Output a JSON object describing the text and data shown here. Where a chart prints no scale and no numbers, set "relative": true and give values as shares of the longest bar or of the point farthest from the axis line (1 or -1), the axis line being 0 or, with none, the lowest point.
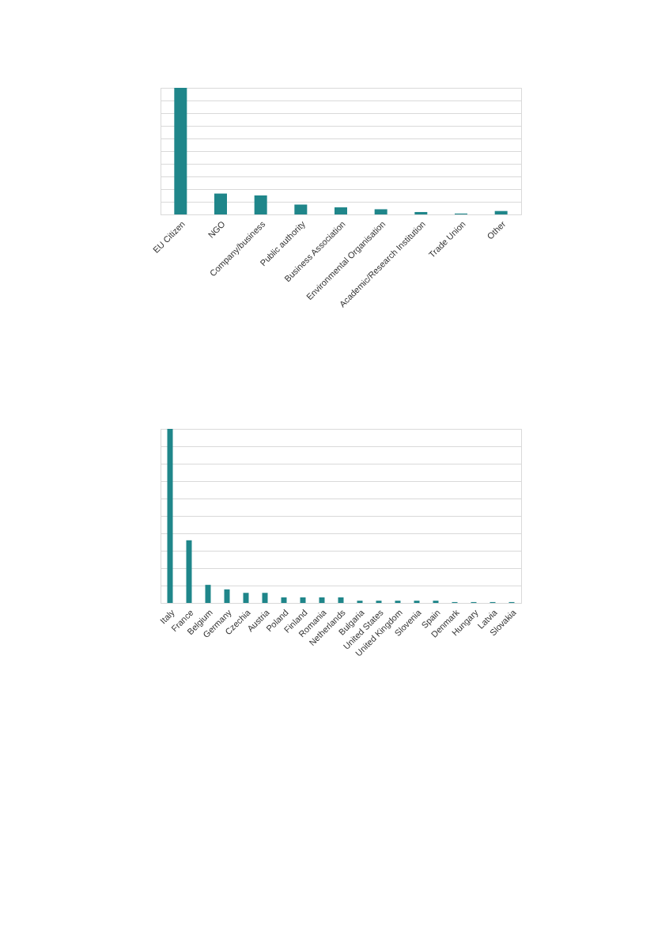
{
  "chart_data": [
    {
      "type": "bar",
      "relative": true,
      "grid": "y",
      "color": "#1f868a",
      "categories": [
        "EU Citizen",
        "NGO",
        "Company/business",
        "Public authority",
        "Business Association",
        "Environmental Organisation",
        "Academic/Research Institution",
        "Trade Union",
        "Other"
      ],
      "values": [
        1,
        0.165,
        0.15,
        0.078,
        0.056,
        0.041,
        0.019,
        0.007,
        0.027
      ]
    },
    {
      "type": "bar",
      "relative": true,
      "grid": "y",
      "color": "#1f868a",
      "categories": [
        "Italy",
        "France",
        "Belgium",
        "Germany",
        "Czechia",
        "Austria",
        "Poland",
        "Finland",
        "Romania",
        "Netherlands",
        "Bulgaria",
        "United States",
        "United Kingdom",
        "Slovenia",
        "Spain",
        "Denmark",
        "Hungary",
        "Latvia",
        "Slovakia"
      ],
      "values": [
        1,
        0.36,
        0.104,
        0.078,
        0.058,
        0.058,
        0.032,
        0.032,
        0.032,
        0.032,
        0.013,
        0.013,
        0.013,
        0.013,
        0.013,
        0.005,
        0.005,
        0.005,
        0.005
      ]
    }
  ]
}
